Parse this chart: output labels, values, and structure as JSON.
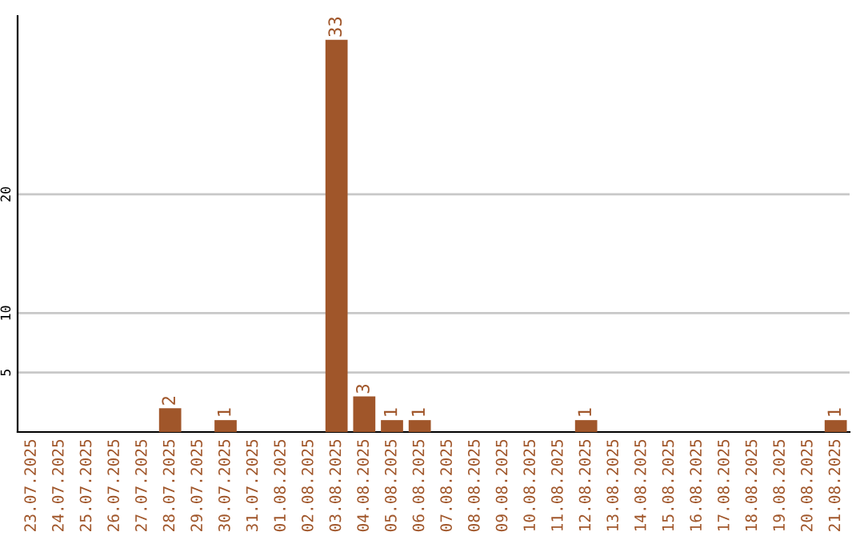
{
  "chart_data": {
    "type": "bar",
    "categories": [
      "23.07.2025",
      "24.07.2025",
      "25.07.2025",
      "26.07.2025",
      "27.07.2025",
      "28.07.2025",
      "29.07.2025",
      "30.07.2025",
      "31.07.2025",
      "01.08.2025",
      "02.08.2025",
      "03.08.2025",
      "04.08.2025",
      "05.08.2025",
      "06.08.2025",
      "07.08.2025",
      "08.08.2025",
      "09.08.2025",
      "10.08.2025",
      "11.08.2025",
      "12.08.2025",
      "13.08.2025",
      "14.08.2025",
      "15.08.2025",
      "16.08.2025",
      "17.08.2025",
      "18.08.2025",
      "19.08.2025",
      "20.08.2025",
      "21.08.2025"
    ],
    "values": [
      0,
      0,
      0,
      0,
      0,
      2,
      0,
      1,
      0,
      0,
      0,
      33,
      3,
      1,
      1,
      0,
      0,
      0,
      0,
      0,
      1,
      0,
      0,
      0,
      0,
      0,
      0,
      0,
      0,
      1
    ],
    "value_labels": [
      null,
      null,
      null,
      null,
      null,
      "2",
      null,
      "1",
      null,
      null,
      null,
      "33",
      "3",
      "1",
      "1",
      null,
      null,
      null,
      null,
      null,
      "1",
      null,
      null,
      null,
      null,
      null,
      null,
      null,
      null,
      "1"
    ],
    "color": "#a0562a",
    "ylim": [
      0,
      35
    ],
    "yticks": [
      5,
      10,
      20
    ],
    "grid": "y"
  }
}
